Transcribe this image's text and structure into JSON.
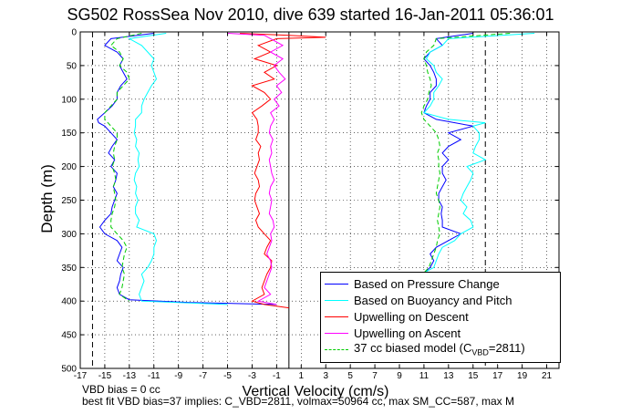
{
  "chart_data": {
    "type": "line",
    "title": "SG502 RossSea Nov 2010, dive 639 started 16-Jan-2011 05:36:01",
    "xlabel": "Vertical Velocity (cm/s)",
    "ylabel": "Depth (m)",
    "xlim": [
      -17,
      22
    ],
    "ylim": [
      500,
      0
    ],
    "y_reversed": true,
    "grid": true,
    "legend_position": "bottom-right",
    "xticks": [
      -17,
      -15,
      -13,
      -11,
      -9,
      -7,
      -5,
      -3,
      -1,
      1,
      3,
      5,
      7,
      9,
      11,
      13,
      15,
      17,
      19,
      21
    ],
    "yticks": [
      0,
      50,
      100,
      150,
      200,
      250,
      300,
      350,
      400,
      450,
      500
    ],
    "reference_lines": [
      {
        "style": "dashed",
        "x": -16
      },
      {
        "style": "solid",
        "x": 0
      },
      {
        "style": "dashed",
        "x": 16
      }
    ],
    "series": [
      {
        "name": "Based on Pressure Change",
        "color": "#0000ff",
        "branch": "descent",
        "y": [
          2,
          10,
          20,
          30,
          40,
          50,
          60,
          70,
          80,
          90,
          100,
          110,
          120,
          130,
          135,
          140,
          150,
          160,
          170,
          180,
          190,
          200,
          210,
          220,
          230,
          240,
          250,
          260,
          270,
          280,
          290,
          300,
          310,
          320,
          330,
          340,
          350,
          360,
          370,
          380,
          390,
          398,
          402,
          405
        ],
        "x": [
          -11,
          -14.5,
          -15,
          -14,
          -13.5,
          -13.8,
          -13.5,
          -13.2,
          -13.7,
          -14,
          -14,
          -14.4,
          -15,
          -15.6,
          -15.5,
          -15,
          -14.5,
          -14,
          -14.4,
          -14.7,
          -14.2,
          -14.5,
          -14,
          -14.1,
          -14.3,
          -14,
          -14.2,
          -14.4,
          -14.5,
          -15,
          -15.4,
          -15,
          -14,
          -13.6,
          -13.8,
          -14,
          -13.5,
          -13.7,
          -13.8,
          -14,
          -13.8,
          -13,
          -8,
          -1
        ]
      },
      {
        "name": "Based on Buoyancy and Pitch",
        "color": "#00ffff",
        "branch": "descent",
        "y": [
          2,
          10,
          20,
          30,
          40,
          50,
          60,
          70,
          80,
          90,
          100,
          110,
          120,
          130,
          140,
          150,
          160,
          170,
          180,
          190,
          200,
          210,
          220,
          230,
          240,
          250,
          260,
          270,
          280,
          290,
          300,
          310,
          320,
          330,
          340,
          350,
          360,
          370,
          380,
          390,
          400,
          405
        ],
        "x": [
          -10,
          -13,
          -12,
          -11.5,
          -11,
          -11.2,
          -11,
          -10.8,
          -11.2,
          -11.5,
          -11.8,
          -12,
          -12,
          -12.5,
          -12.5,
          -12.6,
          -12.4,
          -12.5,
          -12.2,
          -12.3,
          -12.2,
          -12.5,
          -12.6,
          -12.4,
          -12.5,
          -12.3,
          -12.5,
          -12.5,
          -12.2,
          -12.4,
          -11,
          -10.8,
          -11,
          -11,
          -11.2,
          -11.5,
          -12,
          -11.8,
          -12,
          -12.2,
          -12,
          -5
        ]
      },
      {
        "name": "Upwelling on Descent",
        "color": "#ff0000",
        "branch": "center",
        "y": [
          2,
          5,
          8,
          10,
          20,
          30,
          40,
          50,
          60,
          70,
          80,
          90,
          100,
          110,
          120,
          130,
          140,
          150,
          160,
          170,
          180,
          190,
          200,
          210,
          220,
          230,
          240,
          250,
          260,
          270,
          280,
          290,
          300,
          310,
          320,
          330,
          340,
          350,
          360,
          370,
          380,
          390,
          400,
          405,
          410
        ],
        "x": [
          -4,
          0,
          3,
          -1,
          -2.5,
          -1.5,
          -2.8,
          -1,
          -2,
          -1.2,
          -3,
          -2,
          -1.5,
          -2.2,
          -3,
          -2.6,
          -2.5,
          -2.5,
          -2.7,
          -2.3,
          -2.5,
          -2.4,
          -2.6,
          -2.8,
          -2.5,
          -2.4,
          -2.7,
          -2.8,
          -2.6,
          -2.4,
          -2.7,
          -2.5,
          -2,
          -1.5,
          -1.8,
          -2,
          -1.4,
          -1.5,
          -1.8,
          -2,
          -2.2,
          -2,
          -3,
          -2,
          0
        ]
      },
      {
        "name": "Upwelling on Ascent",
        "color": "#ff00ff",
        "branch": "center",
        "y": [
          2,
          5,
          10,
          20,
          30,
          40,
          50,
          60,
          70,
          80,
          90,
          100,
          110,
          120,
          130,
          140,
          150,
          160,
          170,
          180,
          190,
          200,
          210,
          220,
          230,
          240,
          250,
          260,
          270,
          280,
          290,
          300,
          310,
          320,
          330,
          340,
          350,
          360,
          370,
          380,
          390,
          400,
          405
        ],
        "x": [
          -5,
          -2,
          -1.5,
          -0.5,
          -1.5,
          -0.5,
          -1.2,
          -0.8,
          -0.3,
          -1,
          -0.6,
          -1.2,
          -0.8,
          -1.5,
          -1.2,
          -1.5,
          -1.6,
          -1.3,
          -1.5,
          -1.4,
          -1.6,
          -1.5,
          -1.4,
          -1.2,
          -1.5,
          -1.6,
          -1.4,
          -1.5,
          -1.6,
          -1.3,
          -1.2,
          -1.5,
          -1.4,
          -1.6,
          -1.8,
          -1.5,
          -1.4,
          -1.6,
          -1.8,
          -2,
          -1.5,
          -2.5,
          -1
        ]
      },
      {
        "name": "37 cc biased model (C_VBD=2811)",
        "color": "#00cc00",
        "dashed": true,
        "branch": "descent",
        "y": [
          2,
          10,
          20,
          30,
          40,
          50,
          60,
          70,
          80,
          90,
          100,
          110,
          120,
          130,
          140,
          150,
          160,
          170,
          180,
          190,
          200,
          210,
          220,
          230,
          240,
          250,
          260,
          270,
          280,
          290,
          300,
          310,
          320,
          330,
          340,
          350,
          360,
          370,
          380,
          390,
          400
        ],
        "x": [
          -12,
          -14,
          -14.5,
          -13.8,
          -13.5,
          -13.8,
          -13.2,
          -13,
          -13.5,
          -14,
          -14,
          -14.5,
          -15,
          -15,
          -14.5,
          -14,
          -14,
          -14.2,
          -14.3,
          -14.2,
          -14.4,
          -14.2,
          -14.1,
          -14.3,
          -14.2,
          -14.1,
          -14.2,
          -14.4,
          -14.5,
          -14.5,
          -14,
          -13.5,
          -13.2,
          -13.4,
          -13.5,
          -13.6,
          -13.4,
          -13.5,
          -13.6,
          -13.8,
          -13
        ]
      },
      {
        "name": "Based on Pressure Change",
        "color": "#0000ff",
        "branch": "ascent",
        "y": [
          2,
          10,
          20,
          30,
          40,
          50,
          60,
          70,
          80,
          90,
          100,
          110,
          120,
          130,
          140,
          150,
          160,
          170,
          180,
          190,
          200,
          210,
          220,
          230,
          240,
          250,
          260,
          270,
          280,
          290,
          300,
          310,
          320,
          330,
          340,
          350,
          358
        ],
        "x": [
          15,
          12,
          12.5,
          11.5,
          11,
          11.5,
          11.8,
          12,
          12,
          11.5,
          11.5,
          11.2,
          11,
          12,
          15,
          13,
          14,
          13,
          12.5,
          13,
          12.5,
          12.5,
          12.8,
          12.5,
          12.2,
          12.2,
          12.5,
          12.4,
          12.5,
          12.5,
          14,
          13,
          12,
          11.5,
          11.8,
          11.5,
          11
        ]
      },
      {
        "name": "Based on Buoyancy and Pitch",
        "color": "#00ffff",
        "branch": "ascent",
        "y": [
          2,
          10,
          20,
          30,
          40,
          50,
          60,
          70,
          80,
          90,
          100,
          110,
          120,
          130,
          135,
          140,
          150,
          160,
          170,
          180,
          190,
          200,
          210,
          220,
          230,
          240,
          250,
          260,
          270,
          280,
          290,
          300,
          310,
          320,
          330,
          340,
          350,
          358
        ],
        "x": [
          20,
          13,
          12.5,
          11.5,
          11.2,
          11.8,
          12,
          12.5,
          12.2,
          11.8,
          11.8,
          11.5,
          11,
          13,
          16,
          15,
          15.5,
          15.5,
          15.2,
          15,
          16,
          14.5,
          15,
          14.8,
          14.5,
          14.2,
          14,
          14.5,
          14.2,
          14.8,
          15,
          14,
          13.5,
          12.5,
          12.2,
          12,
          11.8,
          11
        ]
      },
      {
        "name": "37 cc biased model (C_VBD=2811)",
        "color": "#00cc00",
        "dashed": true,
        "branch": "ascent",
        "y": [
          2,
          10,
          20,
          30,
          40,
          50,
          60,
          70,
          80,
          90,
          100,
          110,
          120,
          130,
          140,
          150,
          160,
          170,
          180,
          190,
          200,
          210,
          220,
          230,
          240,
          250,
          260,
          270,
          280,
          290,
          300,
          310,
          320,
          330,
          340,
          350,
          358
        ],
        "x": [
          18,
          12,
          11.8,
          11.2,
          11,
          11.2,
          11.3,
          11.5,
          11.6,
          11.4,
          11.3,
          11,
          10.8,
          11,
          11.5,
          12,
          12.2,
          12.3,
          12.1,
          12.2,
          12.2,
          12.3,
          12.2,
          12.1,
          12,
          12.2,
          12.3,
          12.2,
          12.1,
          12.2,
          12.3,
          12.1,
          12,
          11.8,
          11.6,
          11.4,
          11
        ]
      }
    ]
  },
  "legend": {
    "items": [
      {
        "label": "Based on Pressure Change",
        "color": "#0000ff"
      },
      {
        "label": "Based on Buoyancy and Pitch",
        "color": "#00ffff"
      },
      {
        "label": "Upwelling on Descent",
        "color": "#ff0000"
      },
      {
        "label": "Upwelling on Ascent",
        "color": "#ff00ff"
      }
    ],
    "model": {
      "prefix": "37 cc biased model (C",
      "sub": "VBD",
      "suffix": "=2811)",
      "color": "#00cc00"
    }
  },
  "notes": {
    "line1": "VBD bias = 0 cc",
    "line2": "best fit VBD bias=37 implies: C_VBD=2811, volmax=50964 cc, max SM_CC=587, max M"
  }
}
